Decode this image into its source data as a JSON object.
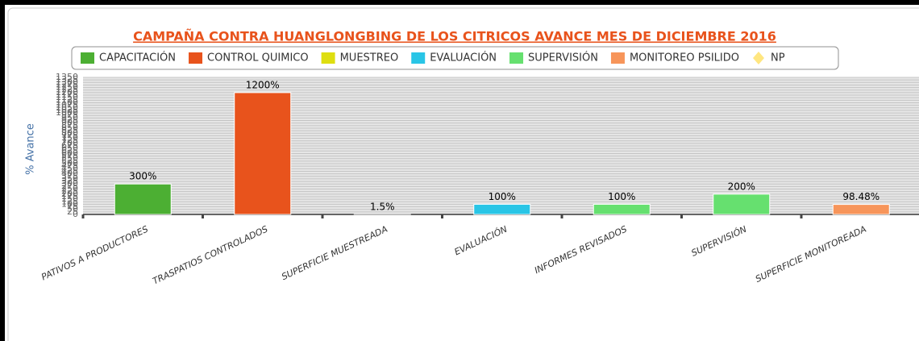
{
  "chart_data": {
    "type": "bar",
    "title": "CAMPAÑA CONTRA HUANGLONGBING DE LOS CITRICOS AVANCE MES DE DICIEMBRE 2016",
    "y_label": "% Avance",
    "legend": [
      {
        "name": "CAPACITACIÓN",
        "color": "#4caf33",
        "marker": "square"
      },
      {
        "name": "CONTROL QUIMICO",
        "color": "#e8531c",
        "marker": "square"
      },
      {
        "name": "MUESTREO",
        "color": "#dede10",
        "marker": "square"
      },
      {
        "name": "EVALUACIÓN",
        "color": "#29c5e6",
        "marker": "square"
      },
      {
        "name": "SUPERVISIÓN",
        "color": "#66e06f",
        "marker": "square"
      },
      {
        "name": "MONITOREO PSILIDO",
        "color": "#f7955a",
        "marker": "square"
      },
      {
        "name": "NP",
        "color": "#ffe680",
        "marker": "diamond"
      }
    ],
    "categories": [
      "PATIVOS A PRODUCTORES",
      "TRASPATIOS CONTROLADOS",
      "SUPERFICIE MUESTREADA",
      "EVALUACIÓN",
      "INFORMES REVISADOS",
      "SUPERVISIÓN",
      "SUPERFICIE MONITOREADA"
    ],
    "values": [
      300,
      1200,
      1.5,
      100,
      100,
      200,
      98.48
    ],
    "value_labels": [
      "300%",
      "1200%",
      "1.5%",
      "100%",
      "100%",
      "200%",
      "98.48%"
    ],
    "colors": [
      "#4caf33",
      "#e8531c",
      "#dede10",
      "#29c5e6",
      "#66e06f",
      "#66e06f",
      "#f7955a"
    ],
    "ylim": [
      0,
      1350
    ],
    "yticks": [
      0,
      25,
      50,
      75,
      100,
      125,
      150,
      175,
      200,
      225,
      250,
      275,
      300,
      325,
      350,
      375,
      400,
      425,
      450,
      475,
      500,
      525,
      550,
      575,
      600,
      625,
      650,
      675,
      700,
      725,
      750,
      775,
      800,
      825,
      850,
      875,
      900,
      925,
      950,
      975,
      1000,
      1025,
      1050,
      1075,
      1100,
      1125,
      1150,
      1175,
      1200,
      1225,
      1250,
      1275,
      1300,
      1325,
      1350
    ],
    "grid": true
  }
}
